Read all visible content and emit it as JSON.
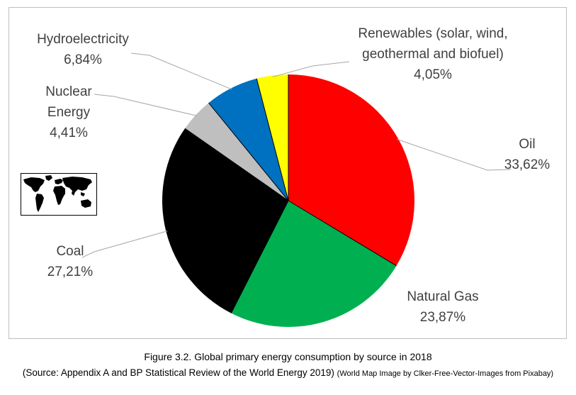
{
  "chart_data": {
    "type": "pie",
    "title": "",
    "slices": [
      {
        "label_lines": [
          "Oil"
        ],
        "value_label": "33,62%",
        "value": 33.62,
        "color": "#ff0000"
      },
      {
        "label_lines": [
          "Natural Gas"
        ],
        "value_label": "23,87%",
        "value": 23.87,
        "color": "#00b050"
      },
      {
        "label_lines": [
          "Coal"
        ],
        "value_label": "27,21%",
        "value": 27.21,
        "color": "#000000"
      },
      {
        "label_lines": [
          "Nuclear",
          "Energy"
        ],
        "value_label": "4,41%",
        "value": 4.41,
        "color": "#bfbfbf"
      },
      {
        "label_lines": [
          "Hydroelectricity"
        ],
        "value_label": "6,84%",
        "value": 6.84,
        "color": "#0070c0"
      },
      {
        "label_lines": [
          "Renewables (solar, wind,",
          "geothermal and biofuel)"
        ],
        "value_label": "4,05%",
        "value": 4.05,
        "color": "#ffff00"
      }
    ],
    "start_angle": "12 o'clock",
    "direction": "clockwise",
    "legend": "none"
  },
  "caption": {
    "line1": "Figure 3.2. Global primary energy consumption by source in 2018",
    "line2": "(Source: Appendix A and BP Statistical Review of the World Energy 2019)",
    "credit": "(World Map Image by Clker-Free-Vector-Images from Pixabay)"
  },
  "decoration": {
    "world_map_icon": "world-map-icon"
  }
}
